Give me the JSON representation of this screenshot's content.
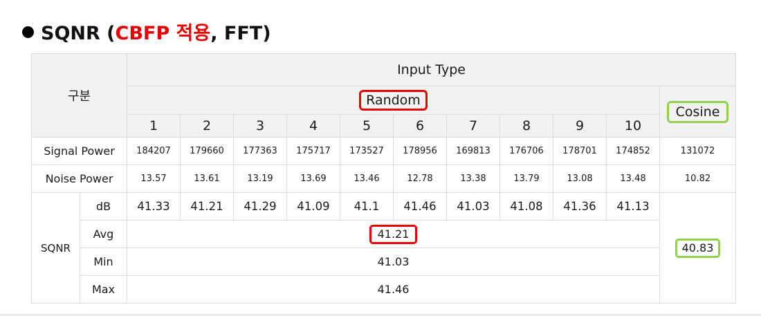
{
  "heading": {
    "prefix": "SQNR (",
    "highlight": "CBFP 적용",
    "suffix": ", FFT)",
    "highlight_color": "#e60000"
  },
  "table": {
    "category_label": "구분",
    "input_type_label": "Input Type",
    "random_label": "Random",
    "cosine_label": "Cosine",
    "columns": [
      "1",
      "2",
      "3",
      "4",
      "5",
      "6",
      "7",
      "8",
      "9",
      "10"
    ],
    "signal_power": {
      "label": "Signal Power",
      "random": [
        "184207",
        "179660",
        "177363",
        "175717",
        "173527",
        "178956",
        "169813",
        "176706",
        "178701",
        "174852"
      ],
      "cosine": "131072"
    },
    "noise_power": {
      "label": "Noise Power",
      "random": [
        "13.57",
        "13.61",
        "13.19",
        "13.69",
        "13.46",
        "12.78",
        "13.38",
        "13.79",
        "13.08",
        "13.48"
      ],
      "cosine": "10.82"
    },
    "sqnr": {
      "label": "SQNR",
      "db_label": "dB",
      "db_values": [
        "41.33",
        "41.21",
        "41.29",
        "41.09",
        "41.1",
        "41.46",
        "41.03",
        "41.08",
        "41.36",
        "41.13"
      ],
      "avg_label": "Avg",
      "avg_value": "41.21",
      "min_label": "Min",
      "min_value": "41.03",
      "max_label": "Max",
      "max_value": "41.46",
      "cosine_value": "40.83"
    }
  },
  "colors": {
    "highlight_red": "#e60000",
    "highlight_green": "#92d050",
    "header_bg": "#f2f2f2",
    "border": "#dcdcdc"
  }
}
